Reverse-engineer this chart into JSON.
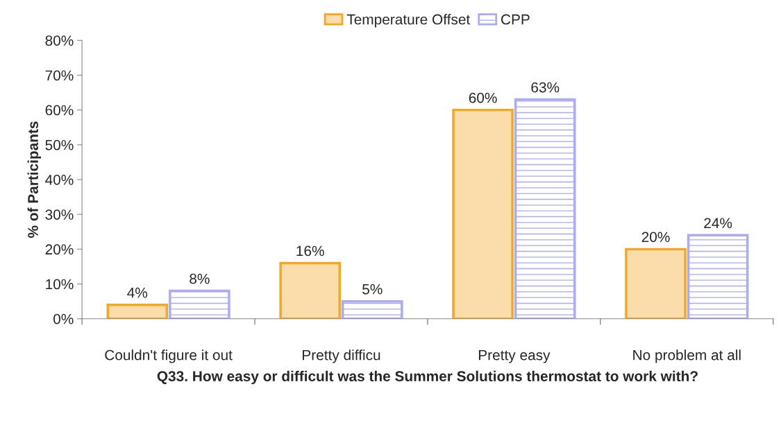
{
  "chart_data": {
    "type": "bar",
    "xlabel": "Q33. How easy or difficult was the Summer Solutions thermostat to work with?",
    "ylabel": "% of Participants",
    "categories": [
      "Couldn't figure it out",
      "Pretty difficu",
      "Pretty easy",
      "No problem at all"
    ],
    "series": [
      {
        "name": "Temperature Offset",
        "color": "#f5a623",
        "values": [
          4,
          16,
          60,
          20
        ],
        "value_labels": [
          "4%",
          "16%",
          "60%",
          "20%"
        ]
      },
      {
        "name": "CPP",
        "color": "#aaaaf5",
        "values": [
          8,
          5,
          63,
          24
        ],
        "value_labels": [
          "8%",
          "5%",
          "63%",
          "24%"
        ]
      }
    ],
    "ylim": [
      0,
      80
    ],
    "yticks": [
      {
        "value": 0,
        "label": "0%"
      },
      {
        "value": 10,
        "label": "10%"
      },
      {
        "value": 20,
        "label": "20%"
      },
      {
        "value": 30,
        "label": "30%"
      },
      {
        "value": 40,
        "label": "40%"
      },
      {
        "value": 50,
        "label": "50%"
      },
      {
        "value": 60,
        "label": "60%"
      },
      {
        "value": 70,
        "label": "70%"
      },
      {
        "value": 80,
        "label": "80%"
      }
    ],
    "grid": false,
    "legend": "top"
  }
}
